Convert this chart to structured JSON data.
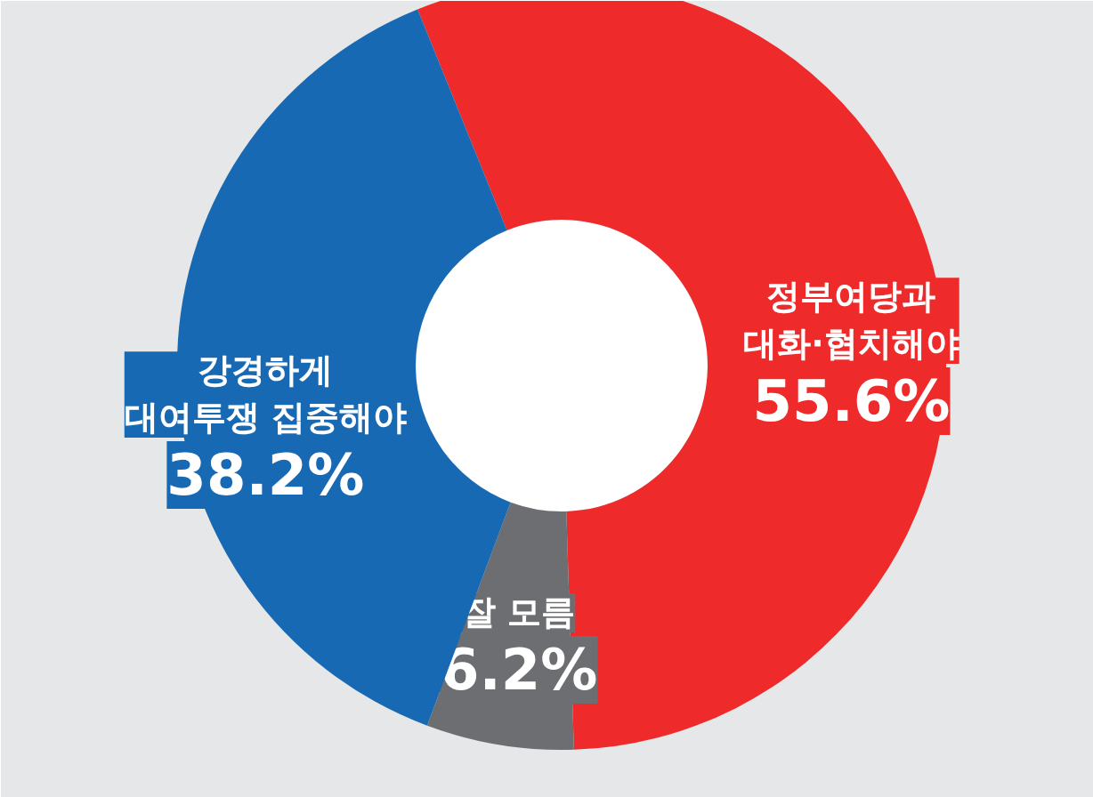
{
  "chart_data": {
    "type": "donut",
    "categories": [
      "정부여당과\n대화·협치해야",
      "잘 모름",
      "강경하게\n대여투쟁 집중해야"
    ],
    "values": [
      55.6,
      6.2,
      38.2
    ],
    "colors": [
      "#ee2a2a",
      "#6d6e71",
      "#1769b3"
    ],
    "value_labels": [
      "55.6%",
      "6.2%",
      "38.2%"
    ]
  }
}
